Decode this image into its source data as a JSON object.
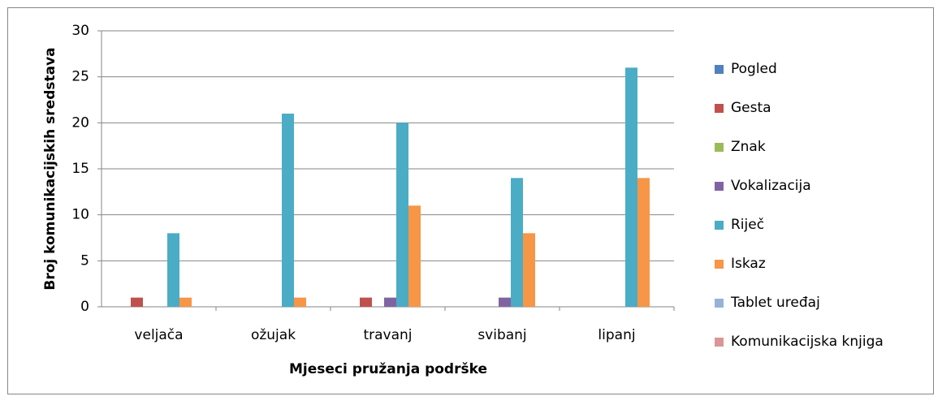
{
  "chart_data": {
    "type": "bar",
    "y_label": "Broj komunikacijskih sredstava",
    "x_label": "Mjeseci pružanja podrške",
    "categories": [
      "veljača",
      "ožujak",
      "travanj",
      "svibanj",
      "lipanj"
    ],
    "series": [
      {
        "name": "Pogled",
        "color": "#4f81bd",
        "values": [
          0,
          0,
          0,
          0,
          0
        ]
      },
      {
        "name": "Gesta",
        "color": "#c0504d",
        "values": [
          1,
          0,
          1,
          0,
          0
        ]
      },
      {
        "name": "Znak",
        "color": "#9bbb59",
        "values": [
          0,
          0,
          0,
          0,
          0
        ]
      },
      {
        "name": "Vokalizacija",
        "color": "#8064a2",
        "values": [
          0,
          0,
          1,
          1,
          0
        ]
      },
      {
        "name": "Riječ",
        "color": "#4bacc6",
        "values": [
          8,
          21,
          20,
          14,
          26
        ]
      },
      {
        "name": "Iskaz",
        "color": "#f79646",
        "values": [
          1,
          1,
          11,
          8,
          14
        ]
      },
      {
        "name": "Tablet uređaj",
        "color": "#95b3d7",
        "values": [
          0,
          0,
          0,
          0,
          0
        ]
      },
      {
        "name": "Komunikacijska knjiga",
        "color": "#d99694",
        "values": [
          0,
          0,
          0,
          0,
          0
        ]
      }
    ],
    "ylim": [
      0,
      30
    ],
    "yticks": [
      0,
      5,
      10,
      15,
      20,
      25,
      30
    ],
    "grid": true,
    "legend": "right"
  }
}
